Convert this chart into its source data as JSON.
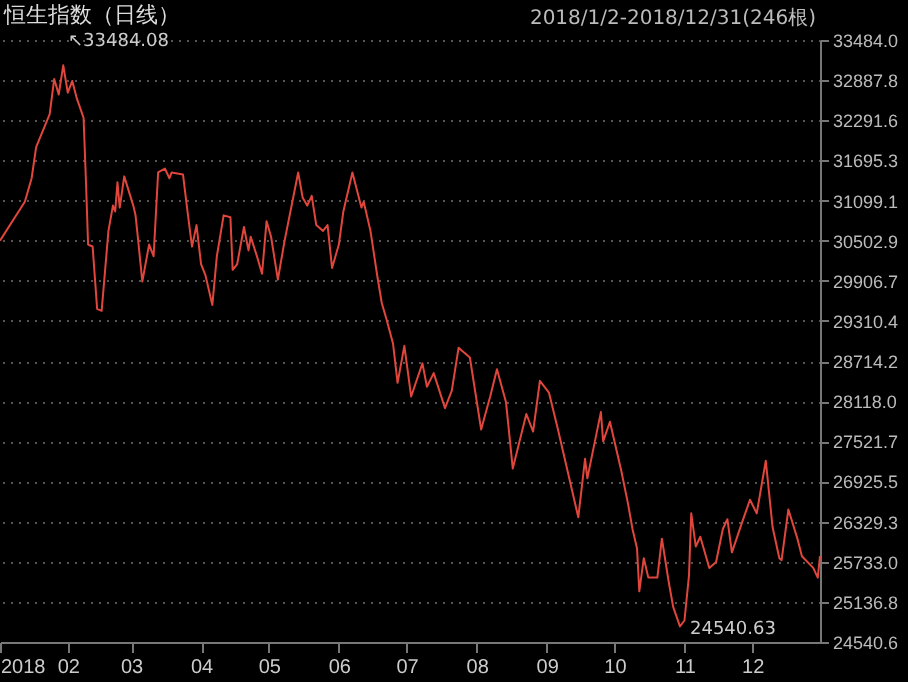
{
  "chart_data": {
    "type": "line",
    "title": "恒生指数（日线）",
    "subtitle": "2018/1/2-2018/12/31(246根)",
    "x": [
      "2018-01-02",
      "2018-01-13",
      "2018-01-16",
      "2018-01-18",
      "2018-01-24",
      "2018-01-26",
      "2018-01-28",
      "2018-01-30",
      "2018-02-01",
      "2018-02-03",
      "2018-02-05",
      "2018-02-08",
      "2018-02-09",
      "2018-02-10",
      "2018-02-12",
      "2018-02-14",
      "2018-02-16",
      "2018-02-19",
      "2018-02-21",
      "2018-02-22",
      "2018-02-23",
      "2018-02-24",
      "2018-02-26",
      "2018-03-02",
      "2018-03-03",
      "2018-03-04",
      "2018-03-06",
      "2018-03-09",
      "2018-03-11",
      "2018-03-13",
      "2018-03-16",
      "2018-03-18",
      "2018-03-19",
      "2018-03-24",
      "2018-03-26",
      "2018-03-28",
      "2018-03-30",
      "2018-04-01",
      "2018-04-03",
      "2018-04-06",
      "2018-04-08",
      "2018-04-11",
      "2018-04-14",
      "2018-04-15",
      "2018-04-17",
      "2018-04-20",
      "2018-04-22",
      "2018-04-23",
      "2018-04-26",
      "2018-04-28",
      "2018-04-30",
      "2018-05-02",
      "2018-05-05",
      "2018-05-08",
      "2018-05-14",
      "2018-05-16",
      "2018-05-18",
      "2018-05-20",
      "2018-05-22",
      "2018-05-25",
      "2018-05-27",
      "2018-05-29",
      "2018-06-01",
      "2018-06-03",
      "2018-06-07",
      "2018-06-11",
      "2018-06-12",
      "2018-06-15",
      "2018-06-18",
      "2018-06-20",
      "2018-06-22",
      "2018-06-25",
      "2018-06-27",
      "2018-06-30",
      "2018-07-03",
      "2018-07-08",
      "2018-07-10",
      "2018-07-13",
      "2018-07-18",
      "2018-07-21",
      "2018-07-24",
      "2018-07-29",
      "2018-08-03",
      "2018-08-07",
      "2018-08-10",
      "2018-08-14",
      "2018-08-17",
      "2018-08-23",
      "2018-08-26",
      "2018-08-29",
      "2018-09-02",
      "2018-09-06",
      "2018-09-11",
      "2018-09-15",
      "2018-09-18",
      "2018-09-19",
      "2018-09-25",
      "2018-09-26",
      "2018-09-29",
      "2018-10-04",
      "2018-10-07",
      "2018-10-09",
      "2018-10-11",
      "2018-10-12",
      "2018-10-14",
      "2018-10-16",
      "2018-10-20",
      "2018-10-22",
      "2018-10-25",
      "2018-10-27",
      "2018-10-30",
      "2018-11-01",
      "2018-11-03",
      "2018-11-04",
      "2018-11-06",
      "2018-11-08",
      "2018-11-12",
      "2018-11-15",
      "2018-11-18",
      "2018-11-20",
      "2018-11-22",
      "2018-11-27",
      "2018-11-30",
      "2018-12-03",
      "2018-12-07",
      "2018-12-10",
      "2018-12-13",
      "2018-12-14",
      "2018-12-17",
      "2018-12-21",
      "2018-12-23",
      "2018-12-28",
      "2018-12-30",
      "2018-12-31"
    ],
    "series": [
      {
        "color": "#e0463c",
        "values": [
          30503,
          31082,
          31430,
          31892,
          32384,
          32905,
          32674,
          33108,
          32703,
          32876,
          32616,
          32326,
          31430,
          30445,
          30416,
          29490,
          29461,
          30648,
          31024,
          30937,
          31371,
          30995,
          31458,
          31024,
          30879,
          30561,
          29895,
          30445,
          30272,
          31516,
          31574,
          31430,
          31516,
          31487,
          30937,
          30416,
          30734,
          30156,
          29982,
          29548,
          30272,
          30879,
          30850,
          30069,
          30156,
          30706,
          30358,
          30561,
          30243,
          30011,
          30792,
          30561,
          29924,
          30503,
          31516,
          31140,
          31024,
          31169,
          30734,
          30648,
          30734,
          30098,
          30445,
          30937,
          31516,
          30995,
          31082,
          30648,
          29982,
          29577,
          29346,
          28970,
          28391,
          28940,
          28188,
          28680,
          28333,
          28535,
          28014,
          28275,
          28911,
          28767,
          27696,
          28188,
          28593,
          28101,
          27117,
          27928,
          27667,
          28420,
          28246,
          27696,
          26972,
          26393,
          27262,
          26972,
          27956,
          27522,
          27812,
          27088,
          26596,
          26220,
          25931,
          25294,
          25786,
          25497,
          25497,
          26076,
          25439,
          25062,
          24773,
          24860,
          25526,
          26452,
          25960,
          26104,
          25641,
          25728,
          26220,
          26365,
          25873,
          26365,
          26654,
          26452,
          27233,
          26249,
          25786,
          25757,
          26509,
          26076,
          25815,
          25641,
          25497,
          25815
        ]
      }
    ],
    "xlim": [
      "2018-01-02",
      "2018-12-31"
    ],
    "xticks": [
      {
        "value": "2018-01-02",
        "label": "2018"
      },
      {
        "value": "2018-02-01",
        "label": "02"
      },
      {
        "value": "2018-03-01",
        "label": "03"
      },
      {
        "value": "2018-04-01",
        "label": "04"
      },
      {
        "value": "2018-05-01",
        "label": "05"
      },
      {
        "value": "2018-06-01",
        "label": "06"
      },
      {
        "value": "2018-07-01",
        "label": "07"
      },
      {
        "value": "2018-08-01",
        "label": "08"
      },
      {
        "value": "2018-09-01",
        "label": "09"
      },
      {
        "value": "2018-10-01",
        "label": "10"
      },
      {
        "value": "2018-11-01",
        "label": "11"
      },
      {
        "value": "2018-12-01",
        "label": "12"
      }
    ],
    "ylim": [
      24540.6,
      33484.0
    ],
    "yticks": [
      {
        "value": 33484.0,
        "label": "33484.0"
      },
      {
        "value": 32887.8,
        "label": "32887.8"
      },
      {
        "value": 32291.6,
        "label": "32291.6"
      },
      {
        "value": 31695.3,
        "label": "31695.3"
      },
      {
        "value": 31099.1,
        "label": "31099.1"
      },
      {
        "value": 30502.9,
        "label": "30502.9"
      },
      {
        "value": 29906.7,
        "label": "29906.7"
      },
      {
        "value": 29310.4,
        "label": "29310.4"
      },
      {
        "value": 28714.2,
        "label": "28714.2"
      },
      {
        "value": 28118.0,
        "label": "28118.0"
      },
      {
        "value": 27521.7,
        "label": "27521.7"
      },
      {
        "value": 26925.5,
        "label": "26925.5"
      },
      {
        "value": 26329.3,
        "label": "26329.3"
      },
      {
        "value": 25733.0,
        "label": "25733.0"
      },
      {
        "value": 25136.8,
        "label": "25136.8"
      },
      {
        "value": 24540.6,
        "label": "24540.6"
      }
    ],
    "annotations": [
      "↖33484.08",
      "24540.63"
    ],
    "grid": "y",
    "marker": "none",
    "line_style": "solid"
  }
}
